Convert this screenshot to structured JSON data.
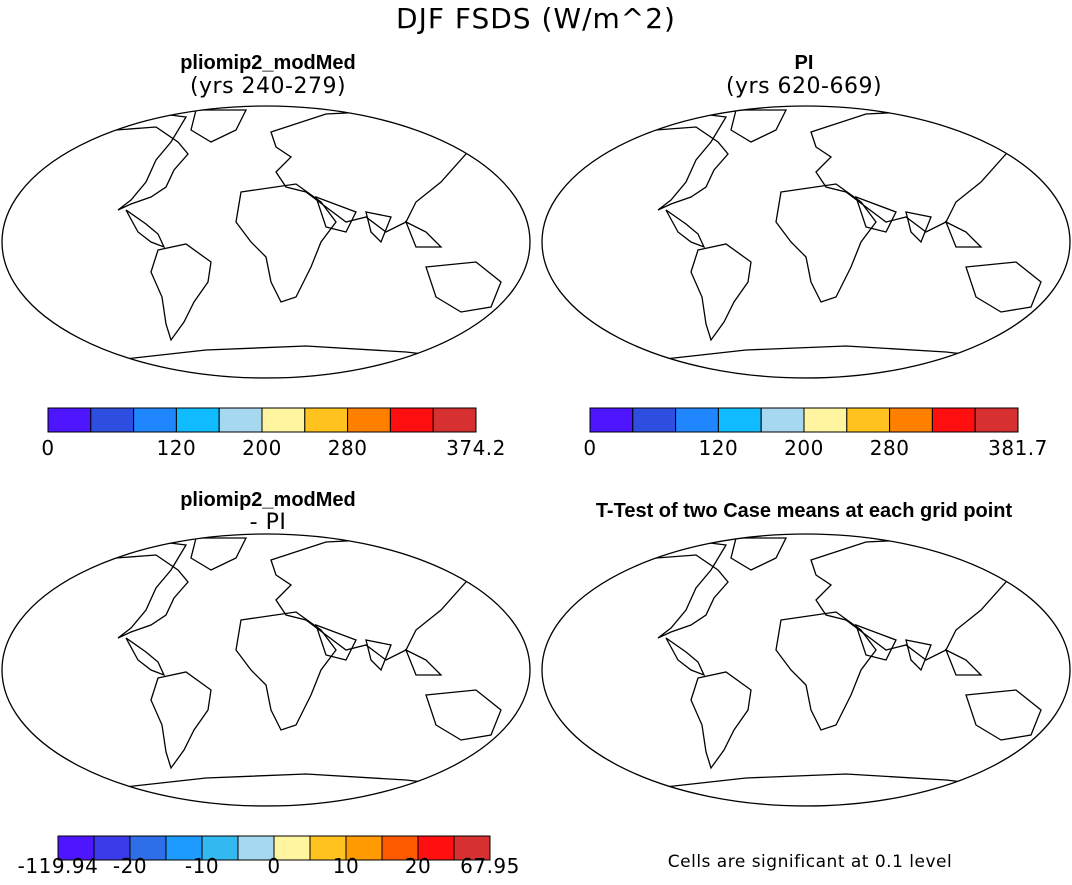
{
  "figure": {
    "title": "DJF FSDS (W/m^2)",
    "panels": [
      {
        "id": "model",
        "title": "pliomip2_modMed",
        "subtitle": "(yrs 240-279)",
        "colorbar": {
          "colors": [
            "#4d16ff",
            "#2e4ee0",
            "#1f86ff",
            "#10bcff",
            "#a6d8f0",
            "#fff5a0",
            "#ffc21f",
            "#ff8000",
            "#ff0f0f",
            "#d73030"
          ],
          "ticks": [
            "0",
            "120",
            "200",
            "280",
            "374.2"
          ]
        }
      },
      {
        "id": "control",
        "title": "PI",
        "subtitle": "(yrs 620-669)",
        "colorbar": {
          "colors": [
            "#4d16ff",
            "#2e4ee0",
            "#1f86ff",
            "#10bcff",
            "#a6d8f0",
            "#fff5a0",
            "#ffc21f",
            "#ff8000",
            "#ff0f0f",
            "#d73030"
          ],
          "ticks": [
            "0",
            "120",
            "200",
            "280",
            "381.7"
          ]
        }
      },
      {
        "id": "difference",
        "title": "pliomip2_modMed",
        "subtitle": "- PI",
        "colorbar": {
          "colors": [
            "#4d16ff",
            "#3a3ae8",
            "#2e6ee8",
            "#1f9cff",
            "#34b8f0",
            "#a6d8f0",
            "#fff5a0",
            "#ffc21f",
            "#ff9a00",
            "#ff5a00",
            "#ff0f0f",
            "#d73030"
          ],
          "ticks": [
            "-119.94",
            "-20",
            "-10",
            "0",
            "10",
            "20",
            "67.95"
          ]
        }
      },
      {
        "id": "ttest",
        "title": "T-Test of two Case means at each grid point",
        "subtitle": "",
        "footnote": "Cells are significant at 0.1 level"
      }
    ]
  }
}
